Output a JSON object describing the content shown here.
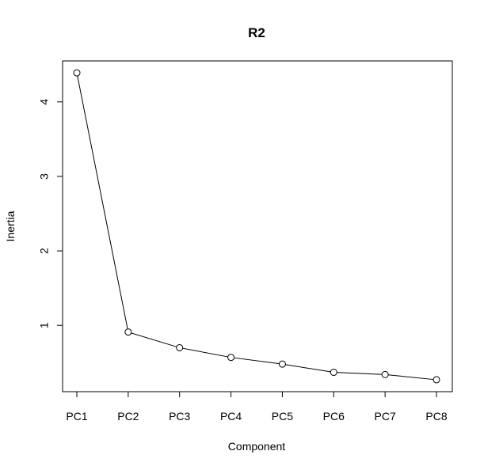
{
  "chart_data": {
    "type": "line",
    "title": "R2",
    "xlabel": "Component",
    "ylabel": "Inertia",
    "categories": [
      "PC1",
      "PC2",
      "PC3",
      "PC4",
      "PC5",
      "PC6",
      "PC7",
      "PC8"
    ],
    "series": [
      {
        "values": [
          4.39,
          0.91,
          0.7,
          0.57,
          0.48,
          0.37,
          0.34,
          0.27
        ]
      }
    ],
    "y_ticks": [
      1,
      2,
      3,
      4
    ],
    "y_tick_labels": [
      "1",
      "2",
      "3",
      "4"
    ],
    "ylim": [
      0.11,
      4.55
    ],
    "grid": false,
    "legend": "none",
    "marker": "open-circle",
    "line_color": "#000000"
  }
}
